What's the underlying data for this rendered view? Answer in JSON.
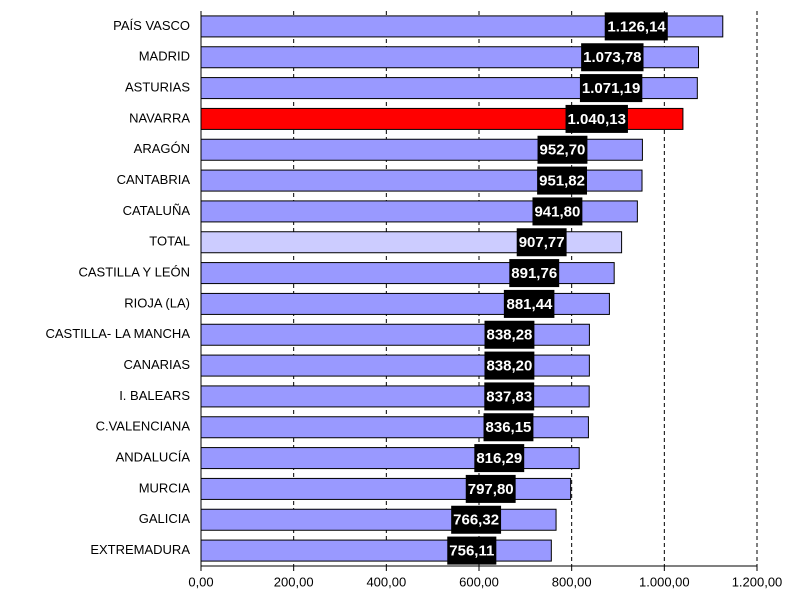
{
  "chart_data": {
    "type": "bar",
    "orientation": "horizontal",
    "categories": [
      "PAÍS VASCO",
      "MADRID",
      "ASTURIAS",
      "NAVARRA",
      "ARAGÓN",
      "CANTABRIA",
      "CATALUÑA",
      "TOTAL",
      "CASTILLA Y LEÓN",
      "RIOJA (LA)",
      "CASTILLA- LA MANCHA",
      "CANARIAS",
      "I. BALEARS",
      "C.VALENCIANA",
      "ANDALUCÍA",
      "MURCIA",
      "GALICIA",
      "EXTREMADURA"
    ],
    "values": [
      1126.14,
      1073.78,
      1071.19,
      1040.13,
      952.7,
      951.82,
      941.8,
      907.77,
      891.76,
      881.44,
      838.28,
      838.2,
      837.83,
      836.15,
      816.29,
      797.8,
      766.32,
      756.11
    ],
    "value_labels": [
      "1.126,14",
      "1.073,78",
      "1.071,19",
      "1.040,13",
      "952,70",
      "951,82",
      "941,80",
      "907,77",
      "891,76",
      "881,44",
      "838,28",
      "838,20",
      "837,83",
      "836,15",
      "816,29",
      "797,80",
      "766,32",
      "756,11"
    ],
    "colors": [
      "#9999ff",
      "#9999ff",
      "#9999ff",
      "#ff0000",
      "#9999ff",
      "#9999ff",
      "#9999ff",
      "#ccccff",
      "#9999ff",
      "#9999ff",
      "#9999ff",
      "#9999ff",
      "#9999ff",
      "#9999ff",
      "#9999ff",
      "#9999ff",
      "#9999ff",
      "#9999ff"
    ],
    "xlim": [
      0,
      1200
    ],
    "xticks": [
      {
        "value": 0,
        "label": "0,00"
      },
      {
        "value": 200,
        "label": "200,00"
      },
      {
        "value": 400,
        "label": "400,00"
      },
      {
        "value": 600,
        "label": "600,00"
      },
      {
        "value": 800,
        "label": "800,00"
      },
      {
        "value": 1000,
        "label": "1.000,00"
      },
      {
        "value": 1200,
        "label": "1.200,00"
      }
    ],
    "grid": true
  }
}
